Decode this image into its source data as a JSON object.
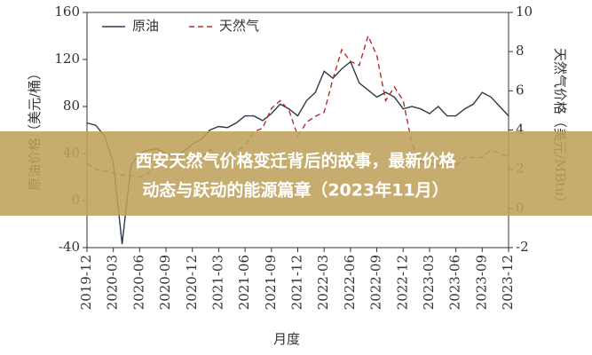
{
  "chart_data": {
    "type": "line",
    "x_label": "月度",
    "y_label": "原油价格（美元/桶）",
    "y2_label": "天然气价格（美元/MBtu）",
    "categories": [
      "2019-12",
      null,
      null,
      "2020-03",
      null,
      null,
      "2020-06",
      null,
      null,
      "2020-09",
      null,
      null,
      "2020-12",
      null,
      null,
      "2021-03",
      null,
      null,
      "2021-06",
      null,
      null,
      "2021-09",
      null,
      null,
      "2021-12",
      null,
      null,
      "2022-03",
      null,
      null,
      "2022-06",
      null,
      null,
      "2022-09",
      null,
      null,
      "2022-12",
      null,
      null,
      "2023-03",
      null,
      null,
      "2023-06",
      null,
      null,
      "2023-09",
      null,
      null,
      "2023-12"
    ],
    "series": [
      {
        "name": "原油",
        "color": "#2b3a4a",
        "dash": "solid",
        "values": [
          66,
          64,
          55,
          32,
          -37,
          30,
          40,
          43,
          44,
          40,
          38,
          42,
          48,
          52,
          60,
          63,
          62,
          66,
          72,
          72,
          68,
          74,
          82,
          78,
          72,
          85,
          92,
          110,
          104,
          112,
          118,
          100,
          94,
          88,
          92,
          88,
          78,
          80,
          78,
          74,
          80,
          72,
          72,
          78,
          82,
          92,
          88,
          80,
          72
        ]
      },
      {
        "name": "天然气",
        "color": "#b03030",
        "dash": "dashed",
        "axis": "y2",
        "values": [
          2.3,
          2.0,
          1.9,
          1.8,
          1.7,
          1.7,
          1.6,
          1.8,
          2.3,
          2.0,
          2.5,
          2.8,
          2.5,
          2.6,
          3.0,
          2.6,
          2.7,
          2.9,
          3.2,
          3.9,
          4.1,
          5.1,
          5.5,
          5.0,
          3.7,
          4.4,
          4.7,
          4.9,
          6.6,
          8.1,
          7.5,
          7.3,
          8.8,
          7.8,
          5.5,
          6.2,
          5.5,
          3.3,
          2.4,
          2.3,
          2.2,
          2.2,
          2.2,
          2.6,
          2.6,
          2.6,
          3.0,
          2.8,
          2.6
        ]
      }
    ],
    "ylim": [
      -40,
      160
    ],
    "yticks": [
      -40,
      0,
      40,
      80,
      120,
      160
    ],
    "y2lim": [
      -2,
      10
    ],
    "y2ticks": [
      -2,
      0,
      2,
      4,
      6,
      8,
      10
    ],
    "legend": "upper left"
  },
  "banner": {
    "lines": [
      "西安天然气价格变迁背后的故事，最新价格",
      "动态与跃动的能源篇章（2023年11月）"
    ]
  }
}
